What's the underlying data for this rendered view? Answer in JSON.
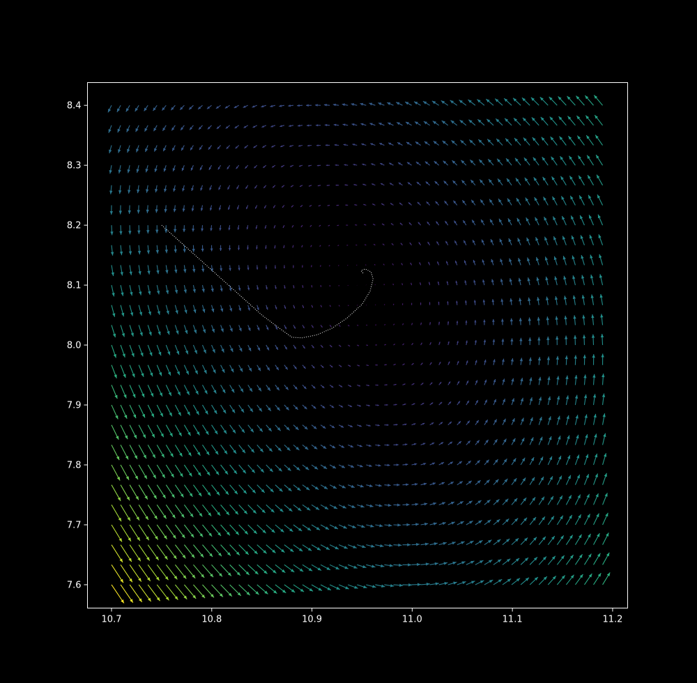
{
  "chart_data": {
    "type": "quiver",
    "title": "",
    "xlabel": "",
    "ylabel": "",
    "xlim": [
      10.676,
      11.215
    ],
    "ylim": [
      7.561,
      8.438
    ],
    "xticks": [
      {
        "value": 10.7,
        "label": "10.7"
      },
      {
        "value": 10.8,
        "label": "10.8"
      },
      {
        "value": 10.9,
        "label": "10.9"
      },
      {
        "value": 11.0,
        "label": "11.0"
      },
      {
        "value": 11.1,
        "label": "11.1"
      },
      {
        "value": 11.2,
        "label": "11.2"
      }
    ],
    "yticks": [
      {
        "value": 7.6,
        "label": "7.6"
      },
      {
        "value": 7.7,
        "label": "7.7"
      },
      {
        "value": 7.8,
        "label": "7.8"
      },
      {
        "value": 7.9,
        "label": "7.9"
      },
      {
        "value": 8.0,
        "label": "8.0"
      },
      {
        "value": 8.1,
        "label": "8.1"
      },
      {
        "value": 8.2,
        "label": "8.2"
      },
      {
        "value": 8.3,
        "label": "8.3"
      },
      {
        "value": 8.4,
        "label": "8.4"
      }
    ],
    "grid": false,
    "colormap": "viridis",
    "background": "#000000",
    "axes_color": "#ffffff",
    "field": {
      "x_range": [
        10.7,
        11.19
      ],
      "y_range": [
        7.6,
        8.4
      ],
      "nx": 55,
      "ny": 25,
      "equilibrium": [
        10.95,
        8.095
      ],
      "u_coeffs": {
        "dx": -0.36,
        "dy": -0.7
      },
      "v_coeffs": {
        "dx": 1.6,
        "dy": 0.2,
        "dxdy": -1.2
      }
    },
    "trajectory": {
      "color": "#ffffff",
      "points": [
        [
          10.75,
          8.2
        ],
        [
          10.77,
          8.17
        ],
        [
          10.79,
          8.14
        ],
        [
          10.81,
          8.11
        ],
        [
          10.83,
          8.08
        ],
        [
          10.85,
          8.05
        ],
        [
          10.87,
          8.025
        ],
        [
          10.88,
          8.013
        ],
        [
          10.89,
          8.012
        ],
        [
          10.905,
          8.017
        ],
        [
          10.92,
          8.028
        ],
        [
          10.935,
          8.045
        ],
        [
          10.95,
          8.068
        ],
        [
          10.958,
          8.09
        ],
        [
          10.961,
          8.11
        ],
        [
          10.959,
          8.122
        ],
        [
          10.953,
          8.127
        ],
        [
          10.949,
          8.124
        ],
        [
          10.951,
          8.12
        ]
      ]
    }
  }
}
